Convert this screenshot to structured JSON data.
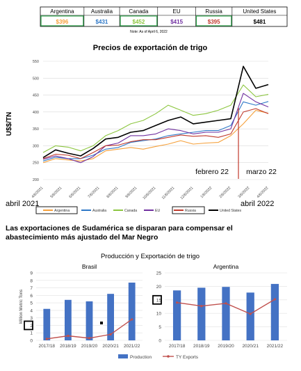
{
  "price_table": {
    "headers": [
      "Argentina",
      "Australia",
      "Canada",
      "EU",
      "Russia",
      "United States"
    ],
    "values": [
      "$396",
      "$431",
      "$452",
      "$415",
      "$395",
      "$481"
    ],
    "value_colors": [
      "#f5a03a",
      "#2e78c7",
      "#8cc63f",
      "#7030a0",
      "#c0392b",
      "#000000"
    ],
    "note": "Note: As of April 6, 2022"
  },
  "section_heading": "Las exportaciones de Sudamérica se disparan para compensar el abastecimiento más ajustado del Mar Negro",
  "annotations": {
    "start_label": "abril 2021",
    "end_label": "abril 2022",
    "feb_label": "febrero 22",
    "mar_label": "marzo 22"
  },
  "chart_data": [
    {
      "type": "line",
      "title": "Precios de exportación de trigo",
      "ylabel": "U$$/TN",
      "xlabel": "",
      "ylim": [
        200,
        550
      ],
      "yticks": [
        200,
        250,
        300,
        350,
        400,
        450,
        500,
        550
      ],
      "grid": true,
      "legend": "bottom",
      "xticks": [
        "4/6/2021",
        "5/6/2021",
        "6/6/2021",
        "7/6/2021",
        "8/6/2021",
        "9/6/2021",
        "10/6/2021",
        "11/6/2021",
        "12/6/2021",
        "1/6/2022",
        "2/6/2022",
        "3/6/2022",
        "4/6/2022"
      ],
      "series": [
        {
          "name": "Argentina",
          "color": "#f5a03a",
          "values": [
            250,
            262,
            258,
            255,
            262,
            285,
            290,
            295,
            290,
            298,
            305,
            315,
            305,
            308,
            310,
            330,
            365,
            405,
            396
          ]
        },
        {
          "name": "Australia",
          "color": "#2e78c7",
          "values": [
            255,
            266,
            262,
            262,
            272,
            290,
            295,
            310,
            315,
            320,
            330,
            335,
            340,
            345,
            345,
            360,
            430,
            420,
            431
          ]
        },
        {
          "name": "Canada",
          "color": "#8cc63f",
          "values": [
            280,
            300,
            296,
            285,
            300,
            330,
            345,
            365,
            375,
            395,
            420,
            405,
            390,
            395,
            405,
            420,
            480,
            445,
            452
          ]
        },
        {
          "name": "EU",
          "color": "#7030a0",
          "values": [
            260,
            270,
            262,
            250,
            268,
            300,
            308,
            330,
            330,
            335,
            350,
            345,
            335,
            340,
            340,
            350,
            455,
            430,
            415
          ]
        },
        {
          "name": "Russia",
          "color": "#c0392b",
          "values": [
            262,
            275,
            272,
            262,
            280,
            300,
            302,
            312,
            318,
            318,
            325,
            332,
            328,
            330,
            325,
            335,
            400,
            410,
            395
          ]
        },
        {
          "name": "United States",
          "color": "#000000",
          "values": [
            265,
            288,
            278,
            270,
            292,
            320,
            325,
            340,
            345,
            360,
            375,
            385,
            365,
            370,
            375,
            380,
            535,
            470,
            481
          ]
        }
      ]
    },
    {
      "type": "bar",
      "title": "Brasil",
      "ylabel": "Million Metric Tons",
      "categories": [
        "2017/18",
        "2018/19",
        "2019/20",
        "2020/21",
        "2021/22"
      ],
      "ylim": [
        0,
        9
      ],
      "yticks": [
        0,
        1,
        2,
        3,
        4,
        5,
        6,
        7,
        8,
        9
      ],
      "series": [
        {
          "name": "Production",
          "color": "#4472c4",
          "type": "bar",
          "values": [
            4.2,
            5.4,
            5.2,
            6.2,
            7.7
          ]
        },
        {
          "name": "TY Exports",
          "color": "#c0504d",
          "type": "line",
          "values": [
            0.2,
            0.6,
            0.3,
            0.8,
            2.8
          ]
        }
      ]
    },
    {
      "type": "bar",
      "title": "Argentina",
      "categories": [
        "2017/18",
        "2018/19",
        "2019/20",
        "2020/21",
        "2021/22"
      ],
      "ylim": [
        0,
        25
      ],
      "yticks": [
        0,
        5,
        10,
        15,
        20,
        25
      ],
      "series": [
        {
          "name": "Production",
          "color": "#4472c4",
          "type": "bar",
          "values": [
            18.5,
            19.5,
            19.8,
            17.7,
            20.9
          ]
        },
        {
          "name": "TY Exports",
          "color": "#c0504d",
          "type": "line",
          "values": [
            14.0,
            12.7,
            13.7,
            9.8,
            15.2
          ]
        }
      ]
    }
  ],
  "small_charts_header": "Producción y Exportación de trigo",
  "small_charts_legend": [
    "Production",
    "TY Exports"
  ]
}
